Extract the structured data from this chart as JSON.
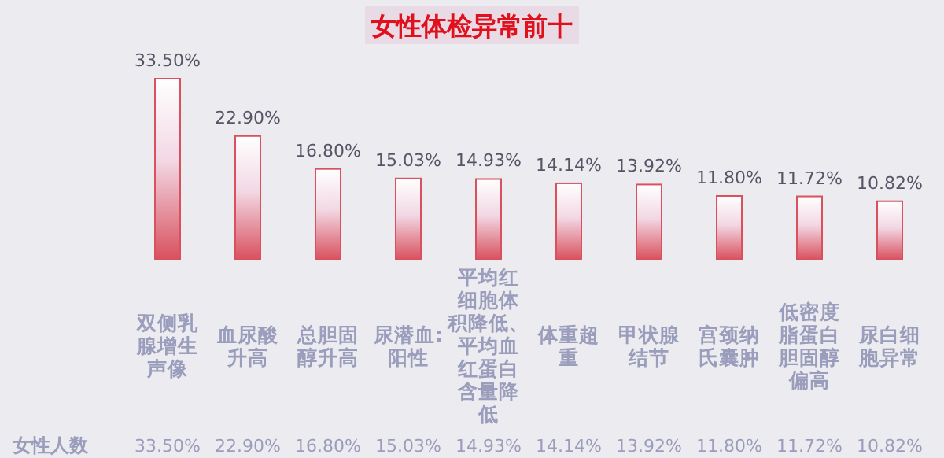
{
  "chart_data": {
    "type": "bar",
    "title": "女性体检异常前十",
    "categories": [
      "双侧乳腺增生声像",
      "血尿酸升高",
      "总胆固醇升高",
      "尿潜血:阳性",
      "平均红细胞体积降低、平均血红蛋白含量降低",
      "体重超重",
      "甲状腺结节",
      "宫颈纳氏囊肿",
      "低密度脂蛋白胆固醇偏高",
      "尿白细胞异常"
    ],
    "series": [
      {
        "name": "女性人数",
        "color": "#d9505e",
        "values": [
          33.5,
          22.9,
          16.8,
          15.03,
          14.93,
          14.14,
          13.92,
          11.8,
          11.72,
          10.82
        ],
        "value_labels": [
          "33.50%",
          "22.90%",
          "16.80%",
          "15.03%",
          "14.93%",
          "14.14%",
          "13.92%",
          "11.80%",
          "11.72%",
          "10.82%"
        ]
      }
    ]
  }
}
